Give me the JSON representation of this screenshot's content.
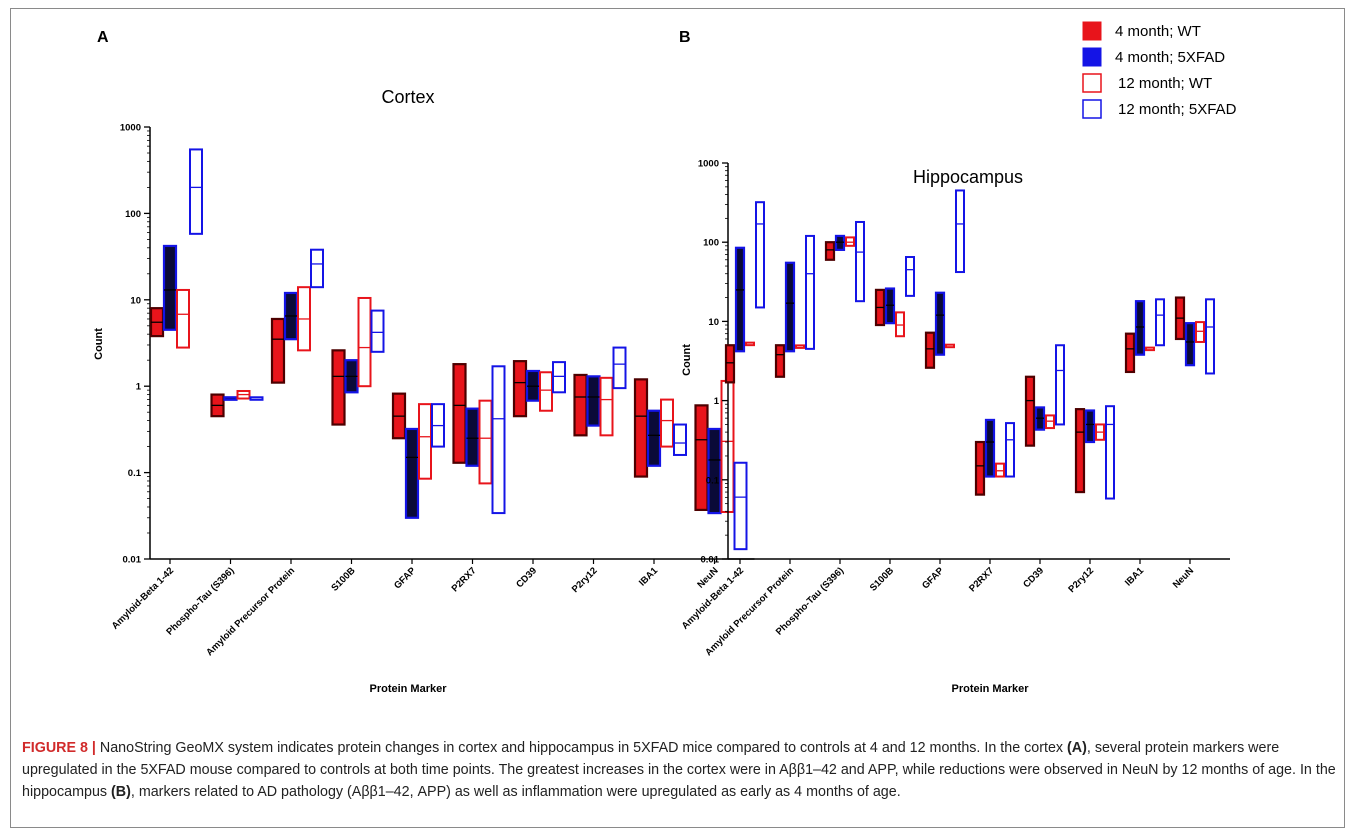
{
  "colors": {
    "red": "#e8141b",
    "blue": "#1414e6",
    "navy": "#0a0a38",
    "darkred": "#4d0000"
  },
  "legend": [
    {
      "label": "4 month; WT",
      "fill": "#e8141b",
      "style": "filled"
    },
    {
      "label": "4 month; 5XFAD",
      "fill": "#1414e6",
      "style": "filled"
    },
    {
      "label": "12 month; WT",
      "fill": "#e8141b",
      "style": "open"
    },
    {
      "label": "12 month; 5XFAD",
      "fill": "#1414e6",
      "style": "open"
    }
  ],
  "caption": {
    "fig_label": "FIGURE 8 |",
    "seg1": " NanoString GeoMX system indicates protein changes in cortex and hippocampus in 5XFAD mice compared to controls at 4 and 12 months. In the cortex ",
    "bold_a": "(A)",
    "seg2": ", several protein markers were upregulated in the 5XFAD mouse compared to controls at both time points. The greatest increases in the cortex were in Aββ1–42 and APP, while reductions were observed in NeuN by 12 months of age. In the hippocampus ",
    "bold_b": "(B)",
    "seg3": ", markers related to AD pathology (Aββ1–42, APP) as well as inflammation were upregulated as early as 4 months of age."
  },
  "chart_data": [
    {
      "type": "box",
      "panel_label": "A",
      "title": "Cortex",
      "xlabel": "Protein Marker",
      "ylabel": "Count",
      "yscale": "log",
      "ylim": [
        0.01,
        1000
      ],
      "yticks": [
        "0.01",
        "0.1",
        "1",
        "10",
        "100",
        "1000"
      ],
      "categories": [
        "Amyloid-Beta 1-42",
        "Phospho-Tau (S396)",
        "Amyloid Precursor Protein",
        "S100B",
        "GFAP",
        "P2RX7",
        "CD39",
        "P2ry12",
        "IBA1",
        "NeuN"
      ],
      "series": [
        {
          "name": "4 month; WT",
          "data": [
            [
              3.8,
              8,
              5.5
            ],
            [
              0.45,
              0.8,
              0.6
            ],
            [
              1.1,
              6,
              3.5
            ],
            [
              0.36,
              2.6,
              1.3
            ],
            [
              0.25,
              0.82,
              0.45
            ],
            [
              0.13,
              1.8,
              0.6
            ],
            [
              0.45,
              1.95,
              1.1
            ],
            [
              0.27,
              1.35,
              0.75
            ],
            [
              0.09,
              1.2,
              0.45
            ],
            [
              0.037,
              0.6,
              0.24
            ]
          ]
        },
        {
          "name": "4 month; 5XFAD",
          "data": [
            [
              4.5,
              42,
              13
            ],
            [
              0.72,
              0.72,
              0.72
            ],
            [
              3.5,
              12,
              6.5
            ],
            [
              0.85,
              2,
              1.3
            ],
            [
              0.03,
              0.32,
              0.15
            ],
            [
              0.12,
              0.55,
              0.25
            ],
            [
              0.68,
              1.5,
              1
            ],
            [
              0.35,
              1.3,
              0.75
            ],
            [
              0.12,
              0.52,
              0.27
            ],
            [
              0.034,
              0.32,
              0.14
            ]
          ]
        },
        {
          "name": "12 month; WT",
          "data": [
            [
              2.8,
              13,
              6.8
            ],
            [
              0.72,
              0.88,
              0.8
            ],
            [
              2.6,
              14,
              6
            ],
            [
              1,
              10.5,
              2.8
            ],
            [
              0.085,
              0.62,
              0.26
            ],
            [
              0.075,
              0.68,
              0.25
            ],
            [
              0.52,
              1.45,
              0.9
            ],
            [
              0.27,
              1.25,
              0.7
            ],
            [
              0.2,
              0.7,
              0.4
            ],
            [
              0.035,
              1.15,
              0.23
            ]
          ]
        },
        {
          "name": "12 month; 5XFAD",
          "data": [
            [
              58,
              550,
              200
            ],
            [
              0.72,
              0.72,
              0.72
            ],
            [
              14,
              38,
              26
            ],
            [
              2.5,
              7.5,
              4.2
            ],
            [
              0.2,
              0.62,
              0.35
            ],
            [
              0.034,
              1.7,
              0.42
            ],
            [
              0.85,
              1.9,
              1.3
            ],
            [
              0.95,
              2.8,
              1.8
            ],
            [
              0.16,
              0.36,
              0.22
            ],
            [
              0.013,
              0.13,
              0.052
            ]
          ]
        }
      ]
    },
    {
      "type": "box",
      "panel_label": "B",
      "title": "Hippocampus",
      "xlabel": "Protein Marker",
      "ylabel": "Count",
      "yscale": "log",
      "ylim": [
        0.01,
        1000
      ],
      "yticks": [
        "0.01",
        "0.1",
        "1",
        "10",
        "100",
        "1000"
      ],
      "categories": [
        "Amyloid-Beta 1-42",
        "Amyloid Precursor Protein",
        "Phospho-Tau (S396)",
        "S100B",
        "GFAP",
        "P2RX7",
        "CD39",
        "P2ry12",
        "IBA1",
        "NeuN"
      ],
      "series": [
        {
          "name": "4 month; WT",
          "data": [
            [
              1.7,
              5,
              3
            ],
            [
              2,
              5,
              3.8
            ],
            [
              60,
              100,
              80
            ],
            [
              9,
              25,
              15
            ],
            [
              2.6,
              7.2,
              4.5
            ],
            [
              0.065,
              0.3,
              0.15
            ],
            [
              0.27,
              2,
              1
            ],
            [
              0.07,
              0.78,
              0.4
            ],
            [
              2.3,
              7,
              4.5
            ],
            [
              6,
              20,
              11
            ]
          ]
        },
        {
          "name": "4 month; 5XFAD",
          "data": [
            [
              4.2,
              85,
              25
            ],
            [
              4.2,
              55,
              17
            ],
            [
              80,
              120,
              100
            ],
            [
              9.5,
              26,
              16
            ],
            [
              3.8,
              23,
              12
            ],
            [
              0.11,
              0.57,
              0.3
            ],
            [
              0.43,
              0.82,
              0.6
            ],
            [
              0.3,
              0.75,
              0.5
            ],
            [
              3.8,
              18,
              8.5
            ],
            [
              2.8,
              9.5,
              5.5
            ]
          ]
        },
        {
          "name": "12 month; WT",
          "data": [
            [
              5.2,
              5.2,
              5.2
            ],
            [
              4.8,
              4.8,
              4.8
            ],
            [
              90,
              115,
              100
            ],
            [
              6.5,
              13,
              9
            ],
            [
              4.9,
              4.9,
              4.9
            ],
            [
              0.11,
              0.16,
              0.13
            ],
            [
              0.45,
              0.65,
              0.55
            ],
            [
              0.32,
              0.5,
              0.4
            ],
            [
              4.5,
              4.5,
              4.5
            ],
            [
              5.5,
              9.8,
              7.5
            ]
          ]
        },
        {
          "name": "12 month; 5XFAD",
          "data": [
            [
              15,
              320,
              170
            ],
            [
              4.5,
              120,
              40
            ],
            [
              18,
              180,
              75
            ],
            [
              21,
              65,
              45
            ],
            [
              42,
              450,
              170
            ],
            [
              0.11,
              0.52,
              0.32
            ],
            [
              0.5,
              5,
              2.4
            ],
            [
              0.058,
              0.85,
              0.5
            ],
            [
              5,
              19,
              12
            ],
            [
              2.2,
              19,
              8.5
            ]
          ]
        }
      ]
    }
  ]
}
